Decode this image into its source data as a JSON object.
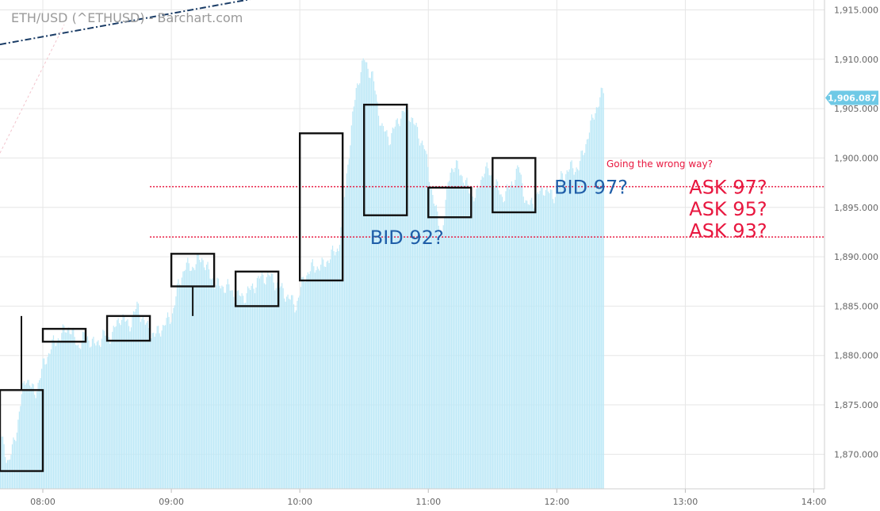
{
  "chart_data": {
    "type": "bar",
    "title": "ETH/USD (^ETHUSD) - Barchart.com",
    "ylim": [
      1866.5,
      1916.0
    ],
    "xlim": [
      "07:40",
      "14:05"
    ],
    "y_ticks": [
      "1,870.000",
      "1,875.000",
      "1,880.000",
      "1,885.000",
      "1,890.000",
      "1,895.000",
      "1,900.000",
      "1,905.000",
      "1,910.000",
      "1,915.000"
    ],
    "y_tick_values": [
      1870,
      1875,
      1880,
      1885,
      1890,
      1895,
      1900,
      1905,
      1910,
      1915
    ],
    "x_ticks": [
      "08:00",
      "09:00",
      "10:00",
      "11:00",
      "12:00",
      "13:00",
      "14:00"
    ],
    "last_price": "1,906.087",
    "last_price_value": 1906.087,
    "series_profile": [
      [
        "07:40",
        1872
      ],
      [
        "07:44",
        1869
      ],
      [
        "07:48",
        1873
      ],
      [
        "07:50",
        1876
      ],
      [
        "07:52",
        1878
      ],
      [
        "07:56",
        1876
      ],
      [
        "08:00",
        1879
      ],
      [
        "08:04",
        1881
      ],
      [
        "08:08",
        1882
      ],
      [
        "08:12",
        1883
      ],
      [
        "08:16",
        1881
      ],
      [
        "08:20",
        1882
      ],
      [
        "08:24",
        1881
      ],
      [
        "08:28",
        1882
      ],
      [
        "08:32",
        1882
      ],
      [
        "08:36",
        1884
      ],
      [
        "08:40",
        1883
      ],
      [
        "08:44",
        1885
      ],
      [
        "08:48",
        1883
      ],
      [
        "08:52",
        1882
      ],
      [
        "08:56",
        1883
      ],
      [
        "09:00",
        1884
      ],
      [
        "09:03",
        1887
      ],
      [
        "09:06",
        1889
      ],
      [
        "09:10",
        1889
      ],
      [
        "09:14",
        1890
      ],
      [
        "09:18",
        1888
      ],
      [
        "09:22",
        1887
      ],
      [
        "09:26",
        1887
      ],
      [
        "09:30",
        1886
      ],
      [
        "09:34",
        1886
      ],
      [
        "09:38",
        1887
      ],
      [
        "09:42",
        1888
      ],
      [
        "09:46",
        1888
      ],
      [
        "09:50",
        1887
      ],
      [
        "09:54",
        1886
      ],
      [
        "09:58",
        1885
      ],
      [
        "10:02",
        1888
      ],
      [
        "10:06",
        1889
      ],
      [
        "10:10",
        1889
      ],
      [
        "10:14",
        1890
      ],
      [
        "10:18",
        1891
      ],
      [
        "10:22",
        1899
      ],
      [
        "10:26",
        1907
      ],
      [
        "10:30",
        1910
      ],
      [
        "10:34",
        1908
      ],
      [
        "10:38",
        1903
      ],
      [
        "10:42",
        1902
      ],
      [
        "10:46",
        1904
      ],
      [
        "10:50",
        1905
      ],
      [
        "10:54",
        1903
      ],
      [
        "10:58",
        1901
      ],
      [
        "11:02",
        1896
      ],
      [
        "11:06",
        1892
      ],
      [
        "11:10",
        1899
      ],
      [
        "11:14",
        1899
      ],
      [
        "11:18",
        1897
      ],
      [
        "11:22",
        1896
      ],
      [
        "11:26",
        1899
      ],
      [
        "11:30",
        1898
      ],
      [
        "11:34",
        1896
      ],
      [
        "11:38",
        1897
      ],
      [
        "11:42",
        1899
      ],
      [
        "11:46",
        1895
      ],
      [
        "11:50",
        1896
      ],
      [
        "11:54",
        1897
      ],
      [
        "11:58",
        1896
      ],
      [
        "12:02",
        1898
      ],
      [
        "12:06",
        1899
      ],
      [
        "12:10",
        1899
      ],
      [
        "12:14",
        1902
      ],
      [
        "12:18",
        1905
      ],
      [
        "12:22",
        1907
      ]
    ],
    "candles": [
      {
        "t": "07:50",
        "open": 1876.5,
        "close": 1868.3,
        "high": 1884.0,
        "low": 1868.3
      },
      {
        "t": "08:10",
        "open": 1881.4,
        "close": 1882.7,
        "high": 1882.7,
        "low": 1881.4
      },
      {
        "t": "08:40",
        "open": 1881.5,
        "close": 1884.0,
        "high": 1884.0,
        "low": 1881.5
      },
      {
        "t": "09:10",
        "open": 1887.0,
        "close": 1890.3,
        "high": 1890.3,
        "low": 1884.0
      },
      {
        "t": "09:40",
        "open": 1885.0,
        "close": 1888.5,
        "high": 1888.5,
        "low": 1885.0
      },
      {
        "t": "10:10",
        "open": 1887.6,
        "close": 1902.5,
        "high": 1902.5,
        "low": 1887.6
      },
      {
        "t": "10:40",
        "open": 1894.2,
        "close": 1905.4,
        "high": 1905.4,
        "low": 1894.2
      },
      {
        "t": "11:10",
        "open": 1894.0,
        "close": 1897.0,
        "high": 1897.0,
        "low": 1894.0
      },
      {
        "t": "11:40",
        "open": 1894.5,
        "close": 1900.0,
        "high": 1900.0,
        "low": 1894.5
      }
    ],
    "h_lines": [
      {
        "y": 1897.1,
        "from": "08:50",
        "color": "#e8173f"
      },
      {
        "y": 1892.0,
        "from": "08:50",
        "color": "#e8173f"
      }
    ],
    "trend_line": {
      "from": [
        "07:40",
        1911.5
      ],
      "to": [
        "09:40",
        1916.2
      ],
      "color": "#1a3c66"
    },
    "annotations": [
      {
        "text": "BID 97?",
        "t": "12:16",
        "y": 1897.1,
        "color": "#1f5ea8",
        "size": "large"
      },
      {
        "text": "BID 92?",
        "t": "10:50",
        "y": 1892.0,
        "color": "#1f5ea8",
        "size": "large"
      },
      {
        "text": "Going the wrong way?",
        "t": "12:48",
        "y": 1899.4,
        "color": "#e8173f",
        "size": "small"
      },
      {
        "text": "ASK 97?",
        "t": "13:20",
        "y": 1897.1,
        "color": "#e8173f",
        "size": "large"
      },
      {
        "text": "ASK 95?",
        "t": "13:20",
        "y": 1894.9,
        "color": "#e8173f",
        "size": "large"
      },
      {
        "text": "ASK 93?",
        "t": "13:20",
        "y": 1892.7,
        "color": "#e8173f",
        "size": "large"
      }
    ],
    "colors": {
      "bars": "#bfe9f7",
      "candle": "#111111",
      "grid": "#e6e6e6",
      "badge": "#6fc9e6"
    }
  }
}
